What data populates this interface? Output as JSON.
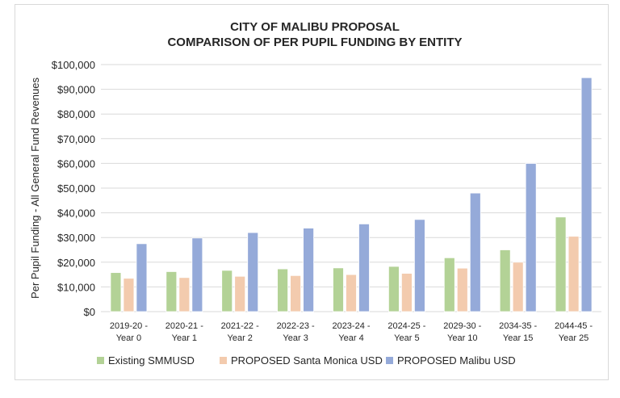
{
  "chart_data": {
    "type": "bar",
    "title": [
      "CITY OF MALIBU PROPOSAL",
      "COMPARISON OF PER PUPIL FUNDING BY ENTITY"
    ],
    "xlabel": "",
    "ylabel": "Per Pupil Funding - All General Fund Revenues",
    "ylim": [
      0,
      100000
    ],
    "yticks": [
      0,
      10000,
      20000,
      30000,
      40000,
      50000,
      60000,
      70000,
      80000,
      90000,
      100000
    ],
    "ytick_labels": [
      "$0",
      "$10,000",
      "$20,000",
      "$30,000",
      "$40,000",
      "$50,000",
      "$60,000",
      "$70,000",
      "$80,000",
      "$90,000",
      "$100,000"
    ],
    "grid": true,
    "legend_position": "bottom",
    "categories": [
      [
        "2019-20 -",
        "Year 0"
      ],
      [
        "2020-21 -",
        "Year 1"
      ],
      [
        "2021-22 -",
        "Year 2"
      ],
      [
        "2022-23 -",
        "Year 3"
      ],
      [
        "2023-24 -",
        "Year 4"
      ],
      [
        "2024-25 -",
        "Year 5"
      ],
      [
        "2029-30 -",
        "Year 10"
      ],
      [
        "2034-35 -",
        "Year 15"
      ],
      [
        "2044-45 -",
        "Year 25"
      ]
    ],
    "series": [
      {
        "name": "Existing SMMUSD",
        "color": "#b3d296",
        "values": [
          15800,
          16200,
          16700,
          17300,
          17700,
          18300,
          21800,
          25000,
          38300
        ]
      },
      {
        "name": "PROPOSED Santa Monica USD",
        "color": "#f3cbae",
        "values": [
          13500,
          13800,
          14300,
          14600,
          15000,
          15500,
          17600,
          20000,
          30500
        ]
      },
      {
        "name": "PROPOSED Malibu USD",
        "color": "#95aad9",
        "values": [
          27500,
          29800,
          32000,
          33800,
          35500,
          37300,
          48000,
          60000,
          94700
        ]
      }
    ]
  }
}
